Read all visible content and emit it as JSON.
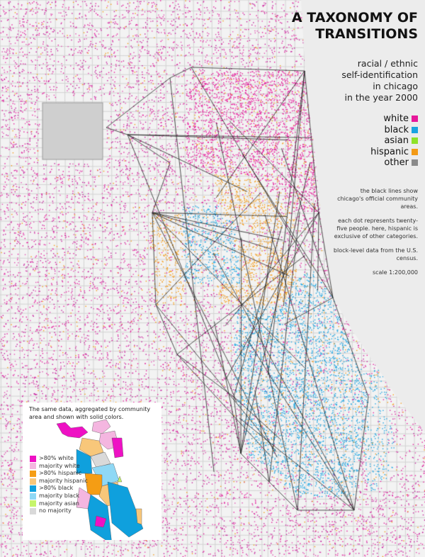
{
  "title_lines": [
    "A TAXONOMY OF",
    "TRANSITIONS"
  ],
  "subtitle_lines": [
    "racial / ethnic",
    "self-identification",
    "in chicago",
    "in the year 2000"
  ],
  "legend": [
    {
      "label": "white",
      "color": "#e6189a"
    },
    {
      "label": "black",
      "color": "#1aa3e0"
    },
    {
      "label": "asian",
      "color": "#8ee22a"
    },
    {
      "label": "hispanic",
      "color": "#f39a16"
    },
    {
      "label": "other",
      "color": "#8a8a8a"
    }
  ],
  "notes": [
    "the black lines show chicago's official community areas.",
    "each dot represents twenty-five people. here, hispanic is exclusive of other categories.",
    "block-level data from the U.S. census.",
    "scale 1:200,000"
  ],
  "inset": {
    "caption": "The same data, aggregated by community area and shown with solid colors.",
    "legend": [
      {
        "label": ">80% white",
        "color": "#ee11c4"
      },
      {
        "label": "majority white",
        "color": "#f4b6e0"
      },
      {
        "label": ">80% hispanic",
        "color": "#f59d14"
      },
      {
        "label": "majority hispanic",
        "color": "#f8c77a"
      },
      {
        "label": ">80% black",
        "color": "#0fa0dd"
      },
      {
        "label": "majority black",
        "color": "#8fd8f5"
      },
      {
        "label": "majority asian",
        "color": "#c6f56a"
      },
      {
        "label": "no majority",
        "color": "#d9d9d9"
      }
    ]
  }
}
